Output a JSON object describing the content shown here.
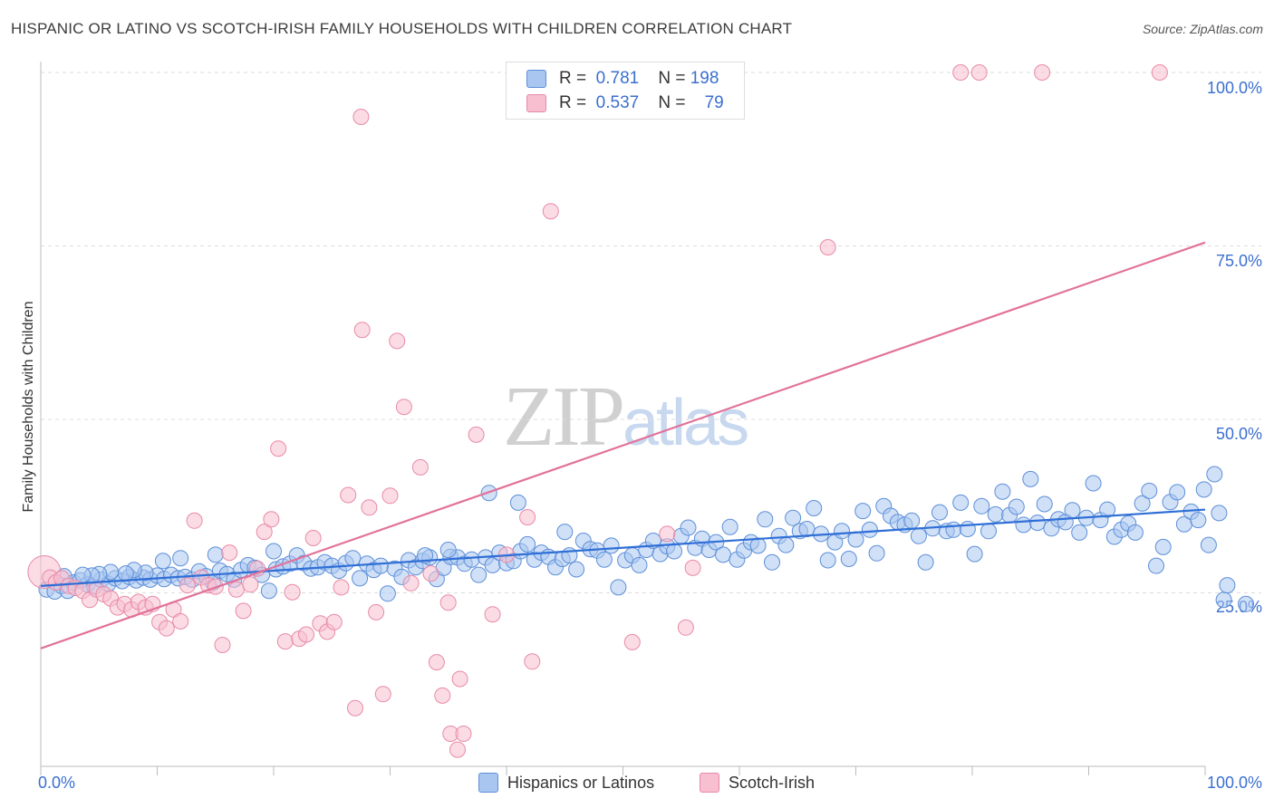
{
  "header": {
    "title": "HISPANIC OR LATINO VS SCOTCH-IRISH FAMILY HOUSEHOLDS WITH CHILDREN CORRELATION CHART",
    "source": "Source: ZipAtlas.com"
  },
  "watermark": {
    "zip": "ZIP",
    "atlas": "atlas"
  },
  "legend_top": {
    "rows": [
      {
        "r_label": "R =",
        "r_value": "0.781",
        "n_label": "N =",
        "n_value": "198"
      },
      {
        "r_label": "R =",
        "r_value": "0.537",
        "n_label": "N =",
        "n_value": "79"
      }
    ]
  },
  "colors": {
    "blue_fill": "#a9c6f0",
    "blue_stroke": "#5d8fd8",
    "blue_line": "#2f6fd6",
    "pink_fill": "#f7bfd0",
    "pink_stroke": "#e88aa8",
    "pink_line": "#e2729a",
    "axis_text": "#3a6fd0"
  },
  "chart_data": {
    "type": "scatter",
    "title": "HISPANIC OR LATINO VS SCOTCH-IRISH FAMILY HOUSEHOLDS WITH CHILDREN CORRELATION CHART",
    "xlabel": "",
    "ylabel": "Family Households with Children",
    "xlim": [
      0,
      100
    ],
    "ylim": [
      0,
      100
    ],
    "x_tick_labels": [
      "0.0%",
      "100.0%"
    ],
    "y_tick_labels": [
      "25.0%",
      "50.0%",
      "75.0%",
      "100.0%"
    ],
    "y_ticks": [
      25,
      50,
      75,
      100
    ],
    "series": [
      {
        "name": "Hispanics or Latinos",
        "R": 0.781,
        "N": 198,
        "trend": {
          "x": [
            0,
            100
          ],
          "y": [
            26.0,
            37.0
          ]
        },
        "points": [
          [
            0.5,
            25.5
          ],
          [
            1.2,
            25.2
          ],
          [
            1.8,
            26.0
          ],
          [
            2.3,
            25.3
          ],
          [
            2.8,
            26.5
          ],
          [
            3.4,
            26.8
          ],
          [
            4.0,
            26.2
          ],
          [
            4.6,
            25.9
          ],
          [
            5.2,
            26.9
          ],
          [
            5.8,
            26.3
          ],
          [
            6.4,
            27.1
          ],
          [
            7.0,
            26.7
          ],
          [
            7.6,
            27.3
          ],
          [
            8.2,
            26.8
          ],
          [
            8.8,
            27.2
          ],
          [
            9.4,
            26.9
          ],
          [
            10.0,
            27.5
          ],
          [
            10.6,
            27.0
          ],
          [
            11.2,
            27.6
          ],
          [
            11.8,
            27.1
          ],
          [
            12.4,
            27.3
          ],
          [
            13.0,
            26.9
          ],
          [
            13.6,
            28.1
          ],
          [
            14.2,
            27.4
          ],
          [
            14.8,
            26.5
          ],
          [
            15.4,
            28.2
          ],
          [
            16.0,
            27.7
          ],
          [
            16.6,
            26.9
          ],
          [
            17.2,
            28.3
          ],
          [
            17.8,
            29.0
          ],
          [
            18.4,
            28.6
          ],
          [
            19.0,
            27.6
          ],
          [
            19.6,
            25.3
          ],
          [
            20.2,
            28.4
          ],
          [
            20.8,
            28.8
          ],
          [
            21.4,
            29.2
          ],
          [
            22.0,
            30.4
          ],
          [
            22.6,
            29.3
          ],
          [
            23.2,
            28.5
          ],
          [
            23.8,
            28.7
          ],
          [
            24.4,
            29.4
          ],
          [
            25.0,
            28.9
          ],
          [
            25.6,
            28.2
          ],
          [
            26.2,
            29.3
          ],
          [
            26.8,
            30.0
          ],
          [
            27.4,
            27.1
          ],
          [
            28.0,
            29.2
          ],
          [
            28.6,
            28.3
          ],
          [
            29.2,
            28.9
          ],
          [
            29.8,
            24.9
          ],
          [
            30.4,
            28.5
          ],
          [
            31.0,
            27.3
          ],
          [
            31.6,
            29.7
          ],
          [
            32.2,
            28.7
          ],
          [
            32.8,
            29.6
          ],
          [
            33.4,
            30.1
          ],
          [
            34.0,
            27.0
          ],
          [
            34.6,
            28.6
          ],
          [
            35.2,
            30.2
          ],
          [
            35.8,
            30.1
          ],
          [
            36.4,
            29.2
          ],
          [
            37.0,
            29.8
          ],
          [
            37.6,
            27.6
          ],
          [
            38.2,
            30.1
          ],
          [
            38.8,
            29.0
          ],
          [
            39.4,
            30.8
          ],
          [
            40.0,
            29.3
          ],
          [
            40.6,
            29.6
          ],
          [
            41.2,
            31.0
          ],
          [
            41.8,
            32.0
          ],
          [
            42.4,
            29.8
          ],
          [
            43.0,
            30.8
          ],
          [
            43.6,
            30.2
          ],
          [
            44.2,
            28.7
          ],
          [
            44.8,
            29.9
          ],
          [
            45.4,
            30.4
          ],
          [
            46.0,
            28.4
          ],
          [
            46.6,
            32.5
          ],
          [
            47.2,
            31.3
          ],
          [
            47.8,
            31.1
          ],
          [
            48.4,
            29.8
          ],
          [
            49.0,
            31.8
          ],
          [
            49.6,
            25.8
          ],
          [
            50.2,
            29.7
          ],
          [
            50.8,
            30.4
          ],
          [
            51.4,
            29.0
          ],
          [
            52.0,
            31.2
          ],
          [
            52.6,
            32.5
          ],
          [
            53.2,
            30.6
          ],
          [
            53.8,
            31.7
          ],
          [
            54.4,
            31.0
          ],
          [
            55.0,
            33.2
          ],
          [
            55.6,
            34.4
          ],
          [
            56.2,
            31.5
          ],
          [
            56.8,
            32.8
          ],
          [
            57.4,
            31.2
          ],
          [
            58.0,
            32.3
          ],
          [
            58.6,
            30.5
          ],
          [
            59.2,
            34.5
          ],
          [
            59.8,
            29.8
          ],
          [
            60.4,
            31.1
          ],
          [
            61.0,
            32.3
          ],
          [
            61.6,
            31.8
          ],
          [
            62.2,
            35.6
          ],
          [
            62.8,
            29.4
          ],
          [
            63.4,
            33.2
          ],
          [
            64.0,
            31.9
          ],
          [
            64.6,
            35.8
          ],
          [
            65.2,
            33.9
          ],
          [
            65.8,
            34.2
          ],
          [
            66.4,
            37.2
          ],
          [
            67.0,
            33.5
          ],
          [
            67.6,
            29.7
          ],
          [
            68.2,
            32.3
          ],
          [
            68.8,
            33.9
          ],
          [
            69.4,
            29.9
          ],
          [
            70.0,
            32.7
          ],
          [
            70.6,
            36.8
          ],
          [
            71.2,
            34.1
          ],
          [
            71.8,
            30.7
          ],
          [
            72.4,
            37.5
          ],
          [
            73.0,
            36.1
          ],
          [
            73.6,
            35.2
          ],
          [
            74.2,
            34.8
          ],
          [
            74.8,
            35.4
          ],
          [
            75.4,
            33.2
          ],
          [
            76.0,
            29.4
          ],
          [
            76.6,
            34.3
          ],
          [
            77.2,
            36.6
          ],
          [
            77.8,
            33.9
          ],
          [
            78.4,
            34.1
          ],
          [
            79.0,
            38.0
          ],
          [
            79.6,
            34.2
          ],
          [
            80.2,
            30.6
          ],
          [
            80.8,
            37.5
          ],
          [
            81.4,
            33.9
          ],
          [
            82.0,
            36.3
          ],
          [
            82.6,
            39.6
          ],
          [
            83.2,
            36.2
          ],
          [
            83.8,
            37.4
          ],
          [
            84.4,
            34.8
          ],
          [
            85.0,
            41.4
          ],
          [
            85.6,
            35.1
          ],
          [
            86.2,
            37.8
          ],
          [
            86.8,
            34.3
          ],
          [
            87.4,
            35.6
          ],
          [
            88.0,
            35.2
          ],
          [
            88.6,
            36.9
          ],
          [
            89.2,
            33.7
          ],
          [
            89.8,
            35.8
          ],
          [
            90.4,
            40.8
          ],
          [
            91.0,
            35.5
          ],
          [
            91.6,
            37.0
          ],
          [
            92.2,
            33.1
          ],
          [
            92.8,
            34.1
          ],
          [
            93.4,
            35.0
          ],
          [
            94.0,
            33.7
          ],
          [
            94.6,
            37.9
          ],
          [
            95.2,
            39.7
          ],
          [
            95.8,
            28.9
          ],
          [
            96.4,
            31.6
          ],
          [
            97.0,
            38.1
          ],
          [
            97.6,
            39.5
          ],
          [
            98.2,
            34.9
          ],
          [
            98.8,
            36.7
          ],
          [
            99.4,
            35.5
          ],
          [
            99.9,
            39.9
          ],
          [
            100.3,
            31.9
          ],
          [
            100.8,
            42.1
          ],
          [
            101.2,
            36.5
          ],
          [
            101.6,
            24.0
          ],
          [
            101.9,
            26.1
          ],
          [
            103.5,
            23.4
          ],
          [
            38.5,
            39.4
          ],
          [
            41.0,
            38.0
          ],
          [
            45.0,
            33.8
          ],
          [
            35.0,
            31.2
          ],
          [
            33.0,
            30.4
          ],
          [
            20.0,
            31.0
          ],
          [
            15.0,
            30.5
          ],
          [
            12.0,
            30.0
          ],
          [
            10.5,
            29.6
          ],
          [
            9.0,
            27.9
          ],
          [
            8.0,
            28.3
          ],
          [
            7.3,
            27.8
          ],
          [
            6.0,
            28.0
          ],
          [
            5.0,
            27.7
          ],
          [
            4.4,
            27.5
          ],
          [
            3.6,
            27.6
          ],
          [
            2.0,
            27.4
          ]
        ]
      },
      {
        "name": "Scotch-Irish",
        "R": 0.537,
        "N": 79,
        "trend": {
          "x": [
            0,
            100
          ],
          "y": [
            17.0,
            75.5
          ]
        },
        "points": [
          [
            0.3,
            28.0
          ],
          [
            0.8,
            27.2
          ],
          [
            1.3,
            26.5
          ],
          [
            1.8,
            27.1
          ],
          [
            2.4,
            26.0
          ],
          [
            3.0,
            25.7
          ],
          [
            3.6,
            25.3
          ],
          [
            4.2,
            24.0
          ],
          [
            4.8,
            25.5
          ],
          [
            5.4,
            24.8
          ],
          [
            6.0,
            24.2
          ],
          [
            6.6,
            22.9
          ],
          [
            7.2,
            23.4
          ],
          [
            7.8,
            22.6
          ],
          [
            8.4,
            23.7
          ],
          [
            9.0,
            22.9
          ],
          [
            9.6,
            23.4
          ],
          [
            10.2,
            20.8
          ],
          [
            10.8,
            19.9
          ],
          [
            11.4,
            22.6
          ],
          [
            12.0,
            20.9
          ],
          [
            12.6,
            26.1
          ],
          [
            13.2,
            35.4
          ],
          [
            13.8,
            27.2
          ],
          [
            14.4,
            26.1
          ],
          [
            15.0,
            25.9
          ],
          [
            15.6,
            17.5
          ],
          [
            16.2,
            30.8
          ],
          [
            16.8,
            25.5
          ],
          [
            17.4,
            22.4
          ],
          [
            18.0,
            26.2
          ],
          [
            18.6,
            28.5
          ],
          [
            19.2,
            33.8
          ],
          [
            19.8,
            35.6
          ],
          [
            20.4,
            45.8
          ],
          [
            21.0,
            18.0
          ],
          [
            21.6,
            25.1
          ],
          [
            22.2,
            18.4
          ],
          [
            22.8,
            19.0
          ],
          [
            23.4,
            32.9
          ],
          [
            24.0,
            20.6
          ],
          [
            24.6,
            19.4
          ],
          [
            25.2,
            20.8
          ],
          [
            25.8,
            25.8
          ],
          [
            26.4,
            39.1
          ],
          [
            27.0,
            8.4
          ],
          [
            27.6,
            62.9
          ],
          [
            28.2,
            37.3
          ],
          [
            28.8,
            22.2
          ],
          [
            29.4,
            10.4
          ],
          [
            30.0,
            39.0
          ],
          [
            30.6,
            61.3
          ],
          [
            31.2,
            51.8
          ],
          [
            32.6,
            43.1
          ],
          [
            34.0,
            15.0
          ],
          [
            34.5,
            10.2
          ],
          [
            35.2,
            4.7
          ],
          [
            35.8,
            2.4
          ],
          [
            36.0,
            12.6
          ],
          [
            36.3,
            4.7
          ],
          [
            37.4,
            47.8
          ],
          [
            38.8,
            21.9
          ],
          [
            40.0,
            30.5
          ],
          [
            42.2,
            15.1
          ],
          [
            43.8,
            80.0
          ],
          [
            50.8,
            17.9
          ],
          [
            53.8,
            33.5
          ],
          [
            55.4,
            20.0
          ],
          [
            56.0,
            28.6
          ],
          [
            67.6,
            74.8
          ],
          [
            86.0,
            100
          ],
          [
            79.0,
            100
          ],
          [
            80.6,
            100
          ],
          [
            96.1,
            100
          ],
          [
            27.5,
            93.6
          ],
          [
            41.8,
            35.9
          ],
          [
            35.0,
            23.6
          ],
          [
            33.5,
            27.8
          ],
          [
            31.8,
            26.4
          ]
        ]
      }
    ],
    "legend": [
      "Hispanics or Latinos",
      "Scotch-Irish"
    ]
  }
}
